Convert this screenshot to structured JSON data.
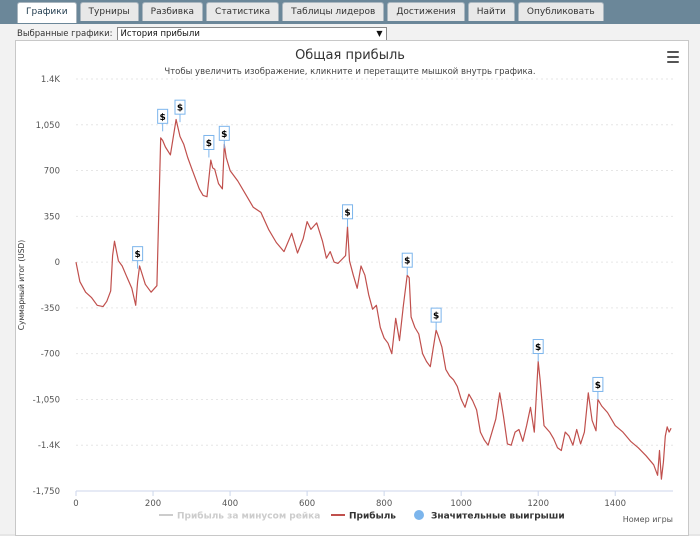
{
  "tabs": [
    {
      "label": "Графики",
      "active": true
    },
    {
      "label": "Турниры",
      "active": false
    },
    {
      "label": "Разбивка",
      "active": false
    },
    {
      "label": "Статистика",
      "active": false
    },
    {
      "label": "Таблицы лидеров",
      "active": false
    },
    {
      "label": "Достижения",
      "active": false
    },
    {
      "label": "Найти",
      "active": false
    },
    {
      "label": "Опубликовать",
      "active": false
    }
  ],
  "selector": {
    "label": "Выбранные графики:",
    "value": "История прибыли"
  },
  "colors": {
    "line": "#c0504d",
    "net": "#cccccc",
    "big_wins": "#7cb5ec",
    "grid": "#e6e6e6"
  },
  "chart_data": {
    "type": "line",
    "title": "Общая прибыль",
    "subtitle": "Чтобы увеличить изображение, кликните и перетащите мышкой внутрь графика.",
    "xlabel": "Номер игры",
    "ylabel": "Суммарный итог (USD)",
    "xlim": [
      0,
      1550
    ],
    "ylim": [
      -1750,
      1400
    ],
    "x_ticks": [
      0,
      200,
      400,
      600,
      800,
      1000,
      1200,
      1400
    ],
    "y_ticks": [
      1400,
      1050,
      700,
      350,
      0,
      -350,
      -700,
      -1050,
      -1400,
      -1750
    ],
    "y_tick_labels": [
      "1.4K",
      "1,050",
      "700",
      "350",
      "0",
      "-350",
      "-700",
      "-1,050",
      "-1.4K",
      "-1,750"
    ],
    "legend": [
      "Прибыль за минусом рейка",
      "Прибыль",
      "Значительные выигрыши"
    ],
    "legend_position": "bottom",
    "series": [
      {
        "name": "Прибыль",
        "x": [
          0,
          10,
          25,
          40,
          55,
          70,
          80,
          90,
          95,
          100,
          110,
          120,
          130,
          145,
          155,
          160,
          165,
          180,
          195,
          210,
          220,
          225,
          232,
          245,
          260,
          270,
          280,
          290,
          300,
          310,
          320,
          330,
          340,
          350,
          355,
          360,
          370,
          380,
          385,
          390,
          400,
          420,
          440,
          460,
          480,
          500,
          520,
          540,
          560,
          575,
          590,
          600,
          610,
          625,
          640,
          650,
          660,
          670,
          680,
          690,
          700,
          705,
          710,
          720,
          730,
          740,
          750,
          760,
          770,
          780,
          790,
          800,
          810,
          820,
          830,
          840,
          850,
          860,
          865,
          870,
          880,
          890,
          900,
          910,
          920,
          935,
          940,
          950,
          960,
          970,
          980,
          990,
          1000,
          1010,
          1020,
          1030,
          1040,
          1050,
          1060,
          1070,
          1080,
          1090,
          1100,
          1110,
          1120,
          1130,
          1140,
          1150,
          1160,
          1170,
          1180,
          1190,
          1200,
          1205,
          1215,
          1230,
          1240,
          1250,
          1260,
          1270,
          1280,
          1290,
          1300,
          1310,
          1320,
          1330,
          1340,
          1350,
          1355,
          1365,
          1380,
          1400,
          1420,
          1440,
          1460,
          1480,
          1500,
          1510,
          1515,
          1520,
          1525,
          1530,
          1535,
          1540,
          1545
        ],
        "y": [
          0,
          -150,
          -230,
          -270,
          -330,
          -340,
          -300,
          -220,
          50,
          160,
          10,
          -30,
          -100,
          -200,
          -330,
          -150,
          -30,
          -170,
          -230,
          -180,
          950,
          930,
          880,
          820,
          1090,
          960,
          900,
          800,
          720,
          640,
          560,
          510,
          500,
          780,
          720,
          710,
          600,
          560,
          900,
          800,
          700,
          620,
          520,
          420,
          380,
          250,
          150,
          80,
          220,
          70,
          180,
          310,
          250,
          300,
          160,
          30,
          80,
          0,
          -10,
          20,
          50,
          270,
          10,
          -100,
          -200,
          -30,
          -100,
          -250,
          -360,
          -330,
          -500,
          -580,
          -620,
          -700,
          -430,
          -600,
          -330,
          -100,
          -120,
          -420,
          -500,
          -550,
          -700,
          -760,
          -800,
          -520,
          -560,
          -650,
          -820,
          -870,
          -900,
          -950,
          -1050,
          -1110,
          -1010,
          -1060,
          -1130,
          -1300,
          -1360,
          -1400,
          -1300,
          -1200,
          -1000,
          -1180,
          -1390,
          -1400,
          -1300,
          -1280,
          -1370,
          -1250,
          -1110,
          -1300,
          -760,
          -900,
          -1250,
          -1300,
          -1350,
          -1420,
          -1440,
          -1300,
          -1330,
          -1400,
          -1280,
          -1390,
          -1300,
          -1000,
          -1210,
          -1290,
          -1050,
          -1100,
          -1150,
          -1250,
          -1300,
          -1370,
          -1420,
          -1480,
          -1550,
          -1630,
          -1440,
          -1660,
          -1530,
          -1330,
          -1260,
          -1300,
          -1270
        ]
      },
      {
        "name": "Значительные выигрыши",
        "x": [
          160,
          225,
          270,
          345,
          385,
          705,
          860,
          935,
          1200,
          1355
        ],
        "y": [
          -50,
          1000,
          1070,
          800,
          870,
          270,
          -100,
          -520,
          -760,
          -1050
        ],
        "marker_label": "$"
      }
    ]
  }
}
